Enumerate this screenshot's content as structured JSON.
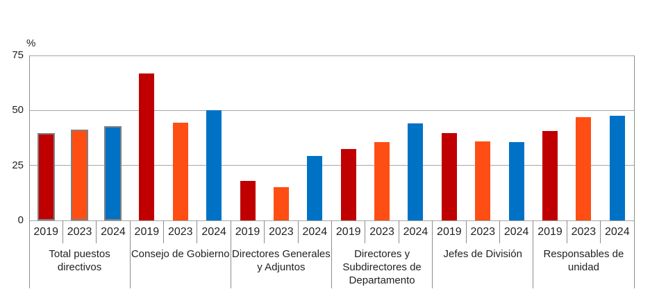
{
  "chart_data": {
    "type": "bar",
    "title": "",
    "unit_label": "%",
    "ylabel": "%",
    "xlabel": "",
    "ylim": [
      0,
      75
    ],
    "yticks": [
      0,
      25,
      50,
      75
    ],
    "grid": true,
    "legend_position": "none",
    "years": [
      "2019",
      "2023",
      "2024"
    ],
    "series_colors": {
      "2019": "#c00000",
      "2023": "#ff4e14",
      "2024": "#0072c6"
    },
    "outline_color": "#808080",
    "gridline_color": "#a6a6a6",
    "separator_color": "#8c8c8c",
    "groups": [
      {
        "label": "Total puestos directivos",
        "label_lines": [
          "Total puestos",
          "directivos"
        ],
        "outlined": true,
        "values": [
          39.6,
          41.3,
          42.8
        ]
      },
      {
        "label": "Consejo de Gobierno",
        "label_lines": [
          "Consejo de Gobierno"
        ],
        "outlined": false,
        "values": [
          66.7,
          44.4,
          50.0
        ]
      },
      {
        "label": "Directores Generales y Adjuntos",
        "label_lines": [
          "Directores Generales",
          "y Adjuntos"
        ],
        "outlined": false,
        "values": [
          18.0,
          15.0,
          29.3
        ]
      },
      {
        "label": "Directores y Subdirectores de Departamento",
        "label_lines": [
          "Directores y",
          "Subdirectores de",
          "Departamento"
        ],
        "outlined": false,
        "values": [
          32.6,
          35.5,
          44.0
        ]
      },
      {
        "label": "Jefes de División",
        "label_lines": [
          "Jefes de División"
        ],
        "outlined": false,
        "values": [
          39.7,
          35.8,
          35.5
        ]
      },
      {
        "label": "Responsables de unidad",
        "label_lines": [
          "Responsables de",
          "unidad"
        ],
        "outlined": false,
        "values": [
          40.5,
          47.0,
          47.6
        ]
      }
    ]
  }
}
